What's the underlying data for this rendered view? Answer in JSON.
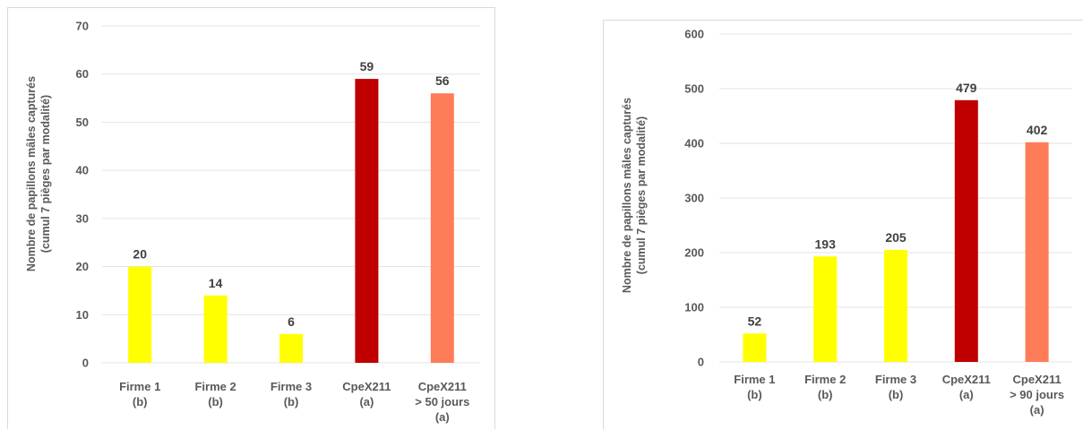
{
  "chart_data": [
    {
      "type": "bar",
      "categories": [
        [
          "Firme 1",
          "(b)"
        ],
        [
          "Firme 2",
          "(b)"
        ],
        [
          "Firme 3",
          "(b)"
        ],
        [
          "CpeX211",
          "(a)"
        ],
        [
          "CpeX211",
          "> 50 jours",
          "(a)"
        ]
      ],
      "values": [
        20,
        14,
        6,
        59,
        56
      ],
      "data_labels": [
        "20",
        "14",
        "6",
        "59",
        "56"
      ],
      "colors": [
        "#ffff00",
        "#ffff00",
        "#ffff00",
        "#c00000",
        "#ff7c59"
      ],
      "ylabel": [
        "Nombre de papillons mâles capturés",
        "(cumul 7 pièges par modalité)"
      ],
      "ylim": [
        0,
        70
      ],
      "yticks": [
        0,
        10,
        20,
        30,
        40,
        50,
        60,
        70
      ],
      "ytick_labels": [
        "0",
        "10",
        "20",
        "30",
        "40",
        "50",
        "60",
        "70"
      ],
      "grid": true,
      "legend": "none"
    },
    {
      "type": "bar",
      "categories": [
        [
          "Firme 1",
          "(b)"
        ],
        [
          "Firme 2",
          "(b)"
        ],
        [
          "Firme 3",
          "(b)"
        ],
        [
          "CpeX211",
          "(a)"
        ],
        [
          "CpeX211",
          "> 90 jours",
          "(a)"
        ]
      ],
      "values": [
        52,
        193,
        205,
        479,
        402
      ],
      "data_labels": [
        "52",
        "193",
        "205",
        "479",
        "402"
      ],
      "colors": [
        "#ffff00",
        "#ffff00",
        "#ffff00",
        "#c00000",
        "#ff7c59"
      ],
      "ylabel": [
        "Nombre de papillons mâles capturés",
        "(cumul 7 pièges par modalité)"
      ],
      "ylim": [
        0,
        600
      ],
      "yticks": [
        0,
        100,
        200,
        300,
        400,
        500,
        600
      ],
      "ytick_labels": [
        "0",
        "100",
        "200",
        "300",
        "400",
        "500",
        "600"
      ],
      "grid": true,
      "legend": "none"
    }
  ]
}
